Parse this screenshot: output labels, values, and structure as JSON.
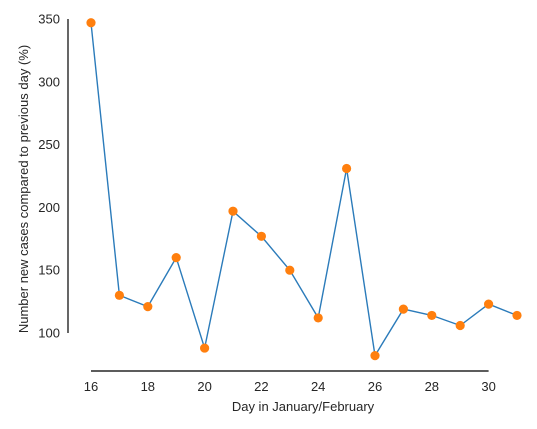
{
  "chart_data": {
    "type": "line",
    "title": "",
    "xlabel": "Day in January/February",
    "ylabel": "Number new cases compared to previous day (%)",
    "x": [
      16,
      17,
      18,
      19,
      20,
      21,
      22,
      23,
      24,
      25,
      26,
      27,
      28,
      29,
      30,
      31
    ],
    "series": [
      {
        "values": [
          347,
          130,
          121,
          160,
          88,
          197,
          177,
          150,
          112,
          231,
          82,
          119,
          114,
          106,
          123,
          114
        ],
        "line_color": "#2b7bba",
        "marker_color": "#ff7f0e"
      }
    ],
    "xlim": [
      16,
      31
    ],
    "ylim": [
      100,
      350
    ],
    "xticks": [
      16,
      18,
      20,
      22,
      24,
      26,
      28,
      30
    ],
    "yticks": [
      100,
      150,
      200,
      250,
      300,
      350
    ],
    "xtick_labels": [
      "16",
      "18",
      "20",
      "22",
      "24",
      "26",
      "28",
      "30"
    ],
    "ytick_labels": [
      "100",
      "150",
      "200",
      "250",
      "300",
      "350"
    ],
    "grid": false,
    "legend": "none"
  }
}
